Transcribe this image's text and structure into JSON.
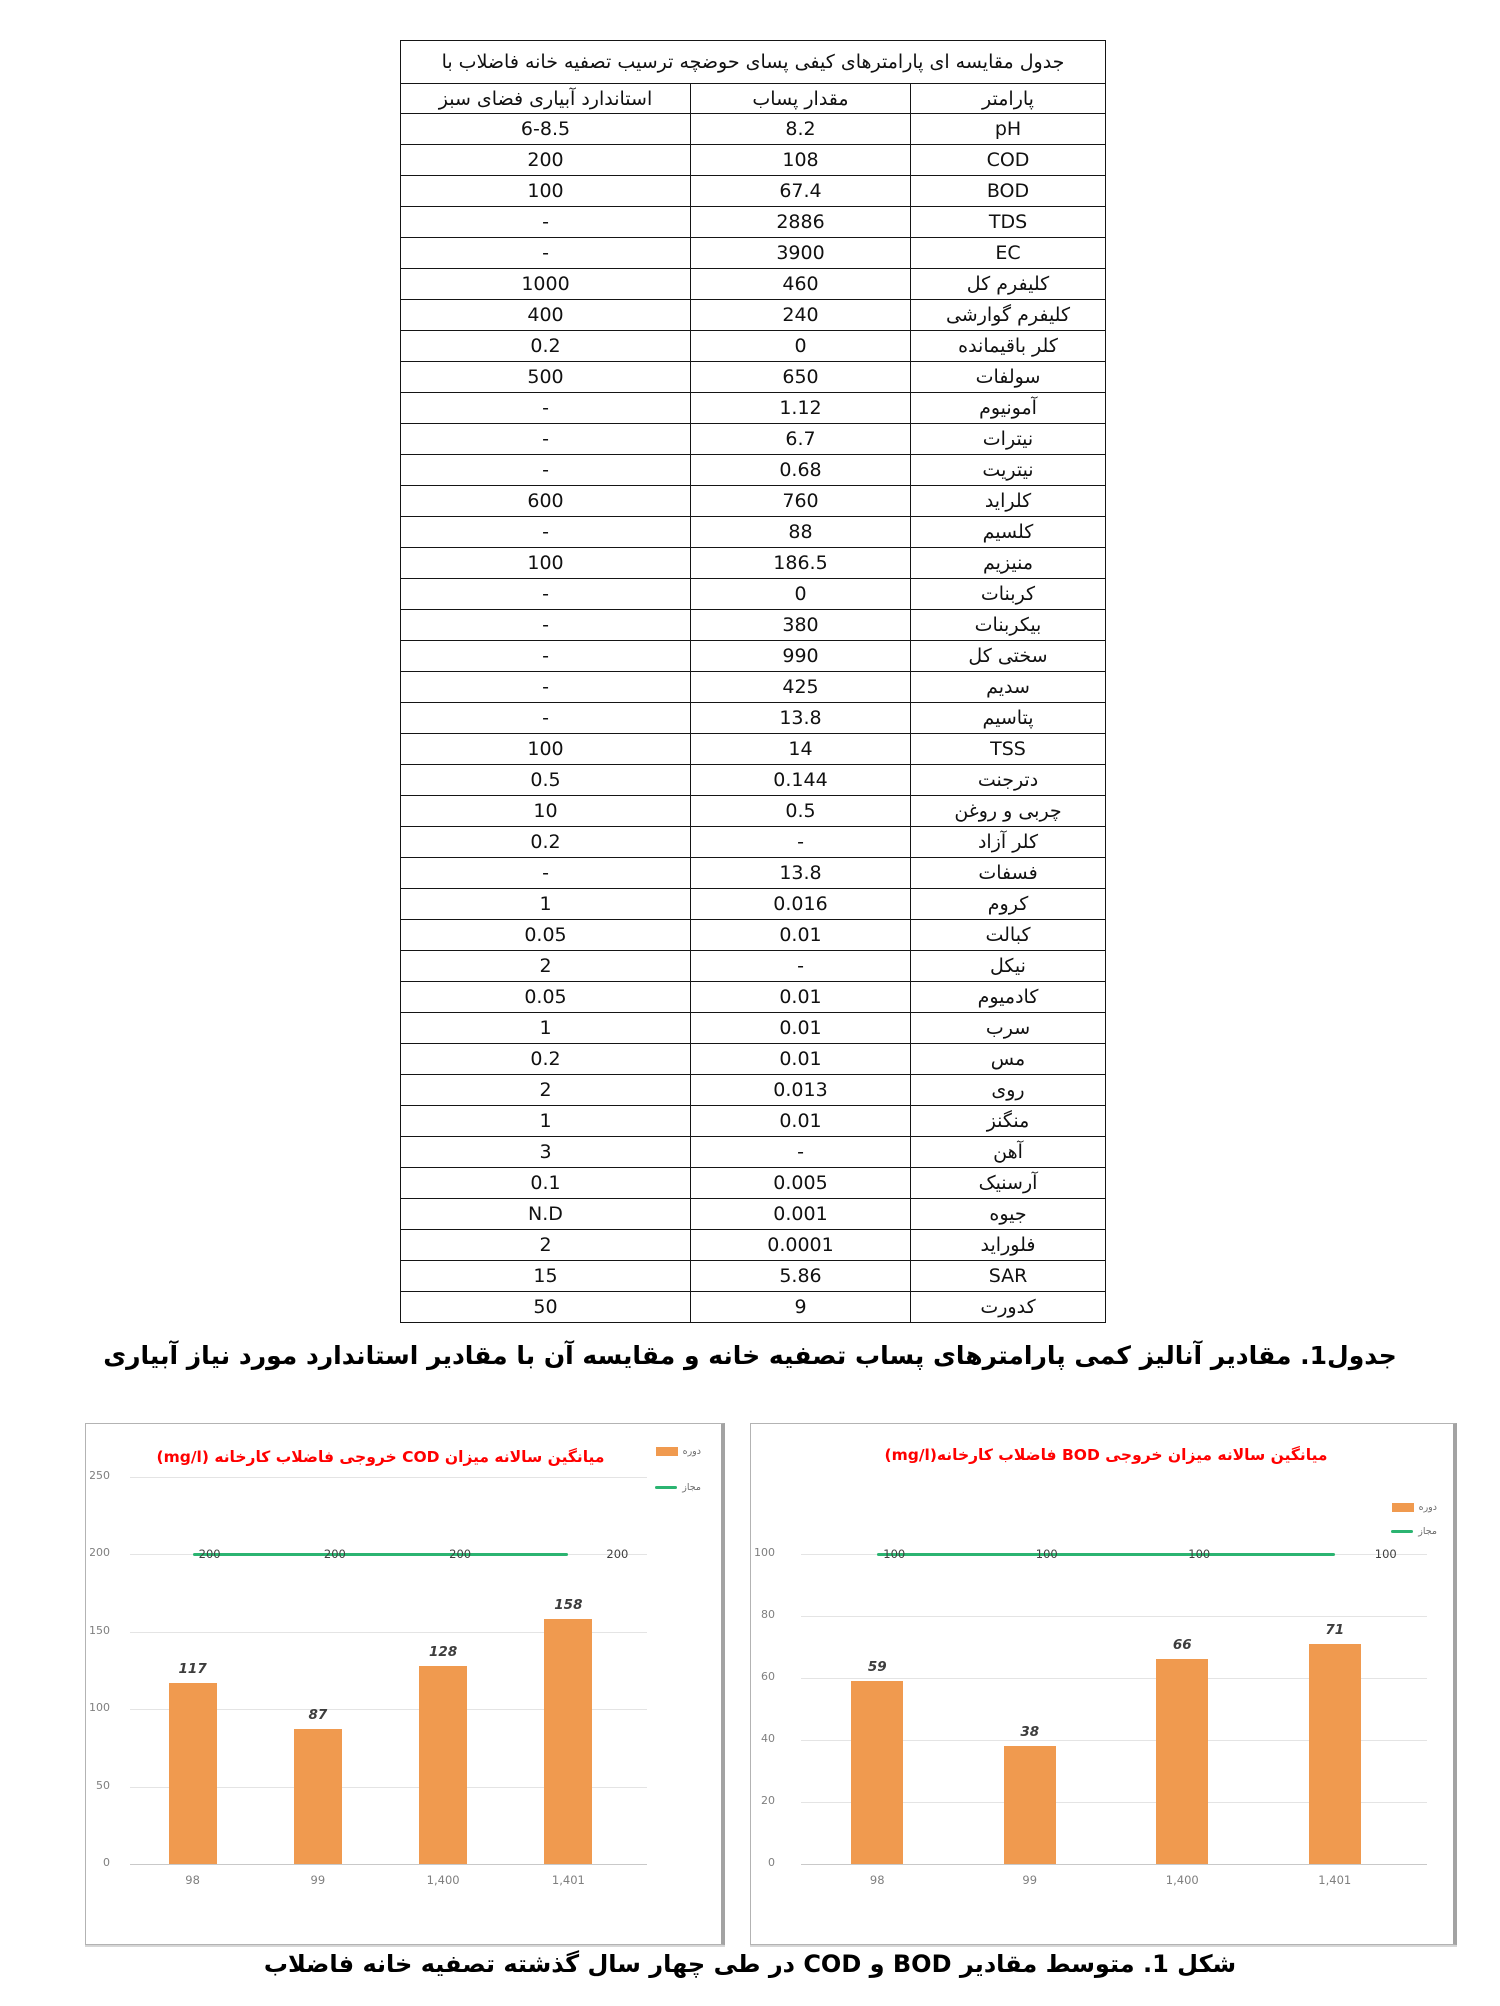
{
  "table": {
    "title": "جدول مقایسه ای پارامترهای کیفی پسای حوضچه ترسیب تصفیه خانه فاضلاب با",
    "columns": [
      "پارامتر",
      "مقدار پساب",
      "استاندارد آبیاری فضای سبز"
    ],
    "rows": [
      [
        "pH",
        "8.2",
        "6-8.5"
      ],
      [
        "COD",
        "108",
        "200"
      ],
      [
        "BOD",
        "67.4",
        "100"
      ],
      [
        "TDS",
        "2886",
        "-"
      ],
      [
        "EC",
        "3900",
        "-"
      ],
      [
        "کلیفرم کل",
        "460",
        "1000"
      ],
      [
        "کلیفرم گوارشی",
        "240",
        "400"
      ],
      [
        "کلر باقیمانده",
        "0",
        "0.2"
      ],
      [
        "سولفات",
        "650",
        "500"
      ],
      [
        "آمونیوم",
        "1.12",
        "-"
      ],
      [
        "نیترات",
        "6.7",
        "-"
      ],
      [
        "نیتریت",
        "0.68",
        "-"
      ],
      [
        "کلراید",
        "760",
        "600"
      ],
      [
        "کلسیم",
        "88",
        "-"
      ],
      [
        "منیزیم",
        "186.5",
        "100"
      ],
      [
        "کربنات",
        "0",
        "-"
      ],
      [
        "بیکربنات",
        "380",
        "-"
      ],
      [
        "سختی کل",
        "990",
        "-"
      ],
      [
        "سدیم",
        "425",
        "-"
      ],
      [
        "پتاسیم",
        "13.8",
        "-"
      ],
      [
        "TSS",
        "14",
        "100"
      ],
      [
        "دترجنت",
        "0.144",
        "0.5"
      ],
      [
        "چربی و روغن",
        "0.5",
        "10"
      ],
      [
        "کلر آزاد",
        "-",
        "0.2"
      ],
      [
        "فسفات",
        "13.8",
        "-"
      ],
      [
        "کروم",
        "0.016",
        "1"
      ],
      [
        "کبالت",
        "0.01",
        "0.05"
      ],
      [
        "نیکل",
        "-",
        "2"
      ],
      [
        "کادمیوم",
        "0.01",
        "0.05"
      ],
      [
        "سرب",
        "0.01",
        "1"
      ],
      [
        "مس",
        "0.01",
        "0.2"
      ],
      [
        "روی",
        "0.013",
        "2"
      ],
      [
        "منگنز",
        "0.01",
        "1"
      ],
      [
        "آهن",
        "-",
        "3"
      ],
      [
        "آرسنیک",
        "0.005",
        "0.1"
      ],
      [
        "جیوه",
        "0.001",
        "N.D"
      ],
      [
        "فلوراید",
        "0.0001",
        "2"
      ],
      [
        "SAR",
        "5.86",
        "15"
      ],
      [
        "کدورت",
        "9",
        "50"
      ]
    ]
  },
  "table_caption": "جدول1. مقادیر آنالیز کمی پارامترهای پساب تصفیه خانه و مقایسه آن با مقادیر استاندارد مورد نیاز آبیاری",
  "figure_caption": "شکل 1. متوسط مقادیر BOD و COD در طی چهار سال گذشته تصفیه خانه فاضلاب",
  "colors": {
    "bar_orange": "#F09A4F",
    "limit_green": "#2BB471",
    "title_red": "#FF0000"
  },
  "chart_data": [
    {
      "type": "bar",
      "title": "میانگین سالانه میزان COD خروجی فاضلاب کارخانه (mg/l)",
      "categories": [
        "98",
        "99",
        "1,400",
        "1,401"
      ],
      "series": [
        {
          "name": "دوره",
          "type": "bar",
          "values": [
            117,
            87,
            128,
            158
          ],
          "color": "#F09A4F"
        },
        {
          "name": "مجاز",
          "type": "line",
          "values": [
            200,
            200,
            200,
            200
          ],
          "color": "#2BB471"
        }
      ],
      "ylabel": "",
      "xlabel": "",
      "ylim": [
        0,
        250
      ],
      "yticks": [
        0,
        50,
        100,
        150,
        200,
        250
      ],
      "grid": true,
      "legend_position": "right"
    },
    {
      "type": "bar",
      "title": "میانگین سالانه میزان خروجی BOD فاضلاب کارخانه(mg/l)",
      "categories": [
        "98",
        "99",
        "1,400",
        "1,401"
      ],
      "series": [
        {
          "name": "دوره",
          "type": "bar",
          "values": [
            59,
            38,
            66,
            71
          ],
          "color": "#F09A4F"
        },
        {
          "name": "مجاز",
          "type": "line",
          "values": [
            100,
            100,
            100,
            100
          ],
          "color": "#2BB471"
        }
      ],
      "ylabel": "",
      "xlabel": "",
      "ylim": [
        0,
        100
      ],
      "yticks": [
        0,
        20,
        40,
        60,
        80,
        100
      ],
      "grid": true,
      "legend_position": "right"
    }
  ]
}
